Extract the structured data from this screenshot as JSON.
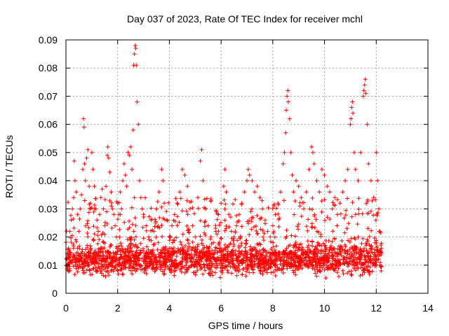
{
  "chart_data": {
    "type": "scatter",
    "title": "Day 037 of 2023, Rate Of TEC Index for receiver mchl",
    "xlabel": "GPS time / hours",
    "ylabel": "ROTI / TECUs",
    "xlim": [
      0,
      14
    ],
    "ylim": [
      0,
      0.09
    ],
    "x_ticks": [
      0,
      2,
      4,
      6,
      8,
      10,
      12,
      14
    ],
    "y_ticks": [
      0,
      0.01,
      0.02,
      0.03,
      0.04,
      0.05,
      0.06,
      0.07,
      0.08,
      0.09
    ],
    "x_tick_labels": [
      "0",
      "2",
      "4",
      "6",
      "8",
      "10",
      "12",
      "14"
    ],
    "y_tick_labels": [
      "0",
      "0.01",
      "0.02",
      "0.03",
      "0.04",
      "0.05",
      "0.06",
      "0.07",
      "0.08",
      "0.09"
    ],
    "grid": true,
    "marker": "plus",
    "color": "#ff0000",
    "series": [
      {
        "points": [
          [
            0.05,
            0.012
          ],
          [
            0.1,
            0.016
          ],
          [
            0.15,
            0.022
          ],
          [
            0.2,
            0.026
          ],
          [
            0.25,
            0.03
          ],
          [
            0.3,
            0.034
          ],
          [
            0.35,
            0.04
          ],
          [
            0.32,
            0.047
          ],
          [
            0.4,
            0.036
          ],
          [
            0.45,
            0.028
          ],
          [
            0.5,
            0.022
          ],
          [
            0.55,
            0.03
          ],
          [
            0.6,
            0.035
          ],
          [
            0.65,
            0.044
          ],
          [
            0.68,
            0.062
          ],
          [
            0.7,
            0.059
          ],
          [
            0.72,
            0.046
          ],
          [
            0.75,
            0.04
          ],
          [
            0.8,
            0.048
          ],
          [
            0.85,
            0.051
          ],
          [
            0.9,
            0.038
          ],
          [
            0.95,
            0.032
          ],
          [
            1.0,
            0.05
          ],
          [
            1.05,
            0.044
          ],
          [
            1.1,
            0.038
          ],
          [
            1.15,
            0.03
          ],
          [
            1.2,
            0.026
          ],
          [
            1.25,
            0.022
          ],
          [
            1.3,
            0.028
          ],
          [
            1.35,
            0.034
          ],
          [
            1.4,
            0.037
          ],
          [
            1.45,
            0.03
          ],
          [
            1.5,
            0.024
          ],
          [
            1.55,
            0.038
          ],
          [
            1.6,
            0.049
          ],
          [
            1.62,
            0.052
          ],
          [
            1.65,
            0.048
          ],
          [
            1.7,
            0.043
          ],
          [
            1.75,
            0.036
          ],
          [
            1.8,
            0.03
          ],
          [
            1.85,
            0.028
          ],
          [
            1.9,
            0.024
          ],
          [
            1.95,
            0.02
          ],
          [
            2.0,
            0.032
          ],
          [
            2.05,
            0.028
          ],
          [
            2.1,
            0.036
          ],
          [
            2.15,
            0.03
          ],
          [
            2.2,
            0.04
          ],
          [
            2.25,
            0.046
          ],
          [
            2.3,
            0.042
          ],
          [
            2.35,
            0.038
          ],
          [
            2.4,
            0.05
          ],
          [
            2.45,
            0.049
          ],
          [
            2.5,
            0.052
          ],
          [
            2.55,
            0.044
          ],
          [
            2.6,
            0.058
          ],
          [
            2.62,
            0.081
          ],
          [
            2.65,
            0.085
          ],
          [
            2.68,
            0.088
          ],
          [
            2.7,
            0.087
          ],
          [
            2.72,
            0.081
          ],
          [
            2.75,
            0.068
          ],
          [
            2.8,
            0.06
          ],
          [
            2.85,
            0.04
          ],
          [
            2.9,
            0.034
          ],
          [
            2.95,
            0.03
          ],
          [
            3.0,
            0.028
          ],
          [
            3.1,
            0.024
          ],
          [
            3.2,
            0.02
          ],
          [
            3.3,
            0.026
          ],
          [
            3.4,
            0.022
          ],
          [
            3.5,
            0.03
          ],
          [
            3.6,
            0.036
          ],
          [
            3.7,
            0.044
          ],
          [
            3.75,
            0.04
          ],
          [
            3.8,
            0.032
          ],
          [
            3.9,
            0.026
          ],
          [
            4.0,
            0.02
          ],
          [
            4.1,
            0.024
          ],
          [
            4.2,
            0.028
          ],
          [
            4.3,
            0.032
          ],
          [
            4.4,
            0.036
          ],
          [
            4.5,
            0.044
          ],
          [
            4.6,
            0.042
          ],
          [
            4.7,
            0.038
          ],
          [
            4.8,
            0.03
          ],
          [
            4.9,
            0.024
          ],
          [
            5.0,
            0.02
          ],
          [
            5.1,
            0.034
          ],
          [
            5.2,
            0.047
          ],
          [
            5.25,
            0.051
          ],
          [
            5.3,
            0.04
          ],
          [
            5.4,
            0.03
          ],
          [
            5.5,
            0.024
          ],
          [
            5.6,
            0.02
          ],
          [
            5.7,
            0.018
          ],
          [
            5.8,
            0.022
          ],
          [
            5.9,
            0.028
          ],
          [
            6.0,
            0.032
          ],
          [
            6.1,
            0.038
          ],
          [
            6.15,
            0.044
          ],
          [
            6.2,
            0.036
          ],
          [
            6.3,
            0.028
          ],
          [
            6.4,
            0.022
          ],
          [
            6.5,
            0.02
          ],
          [
            6.6,
            0.024
          ],
          [
            6.7,
            0.028
          ],
          [
            6.8,
            0.032
          ],
          [
            6.9,
            0.036
          ],
          [
            7.0,
            0.04
          ],
          [
            7.05,
            0.044
          ],
          [
            7.1,
            0.042
          ],
          [
            7.2,
            0.04
          ],
          [
            7.3,
            0.036
          ],
          [
            7.4,
            0.038
          ],
          [
            7.5,
            0.034
          ],
          [
            7.6,
            0.03
          ],
          [
            7.7,
            0.026
          ],
          [
            7.8,
            0.022
          ],
          [
            7.9,
            0.02
          ],
          [
            8.0,
            0.024
          ],
          [
            8.1,
            0.028
          ],
          [
            8.2,
            0.032
          ],
          [
            8.3,
            0.036
          ],
          [
            8.4,
            0.046
          ],
          [
            8.45,
            0.05
          ],
          [
            8.5,
            0.057
          ],
          [
            8.52,
            0.065
          ],
          [
            8.55,
            0.07
          ],
          [
            8.58,
            0.072
          ],
          [
            8.6,
            0.068
          ],
          [
            8.65,
            0.062
          ],
          [
            8.7,
            0.05
          ],
          [
            8.75,
            0.042
          ],
          [
            8.8,
            0.036
          ],
          [
            8.9,
            0.04
          ],
          [
            9.0,
            0.038
          ],
          [
            9.1,
            0.034
          ],
          [
            9.2,
            0.03
          ],
          [
            9.3,
            0.036
          ],
          [
            9.4,
            0.044
          ],
          [
            9.5,
            0.052
          ],
          [
            9.55,
            0.05
          ],
          [
            9.6,
            0.046
          ],
          [
            9.7,
            0.04
          ],
          [
            9.8,
            0.036
          ],
          [
            9.9,
            0.044
          ],
          [
            10.0,
            0.042
          ],
          [
            10.1,
            0.038
          ],
          [
            10.2,
            0.036
          ],
          [
            10.3,
            0.03
          ],
          [
            10.4,
            0.034
          ],
          [
            10.5,
            0.028
          ],
          [
            10.6,
            0.032
          ],
          [
            10.7,
            0.036
          ],
          [
            10.8,
            0.04
          ],
          [
            10.9,
            0.044
          ],
          [
            11.0,
            0.06
          ],
          [
            11.02,
            0.062
          ],
          [
            11.05,
            0.066
          ],
          [
            11.08,
            0.068
          ],
          [
            11.1,
            0.064
          ],
          [
            11.15,
            0.05
          ],
          [
            11.2,
            0.044
          ],
          [
            11.3,
            0.04
          ],
          [
            11.4,
            0.05
          ],
          [
            11.5,
            0.07
          ],
          [
            11.52,
            0.072
          ],
          [
            11.55,
            0.074
          ],
          [
            11.58,
            0.076
          ],
          [
            11.6,
            0.071
          ],
          [
            11.65,
            0.06
          ],
          [
            11.7,
            0.046
          ],
          [
            11.8,
            0.04
          ],
          [
            11.9,
            0.034
          ],
          [
            12.0,
            0.05
          ],
          [
            12.05,
            0.04
          ],
          [
            12.1,
            0.03
          ],
          [
            12.15,
            0.022
          ],
          [
            12.2,
            0.016
          ]
        ]
      }
    ],
    "dense_band": {
      "x_range": [
        0,
        12.2
      ],
      "y_range": [
        0.004,
        0.02
      ],
      "mode_y": 0.011
    }
  }
}
